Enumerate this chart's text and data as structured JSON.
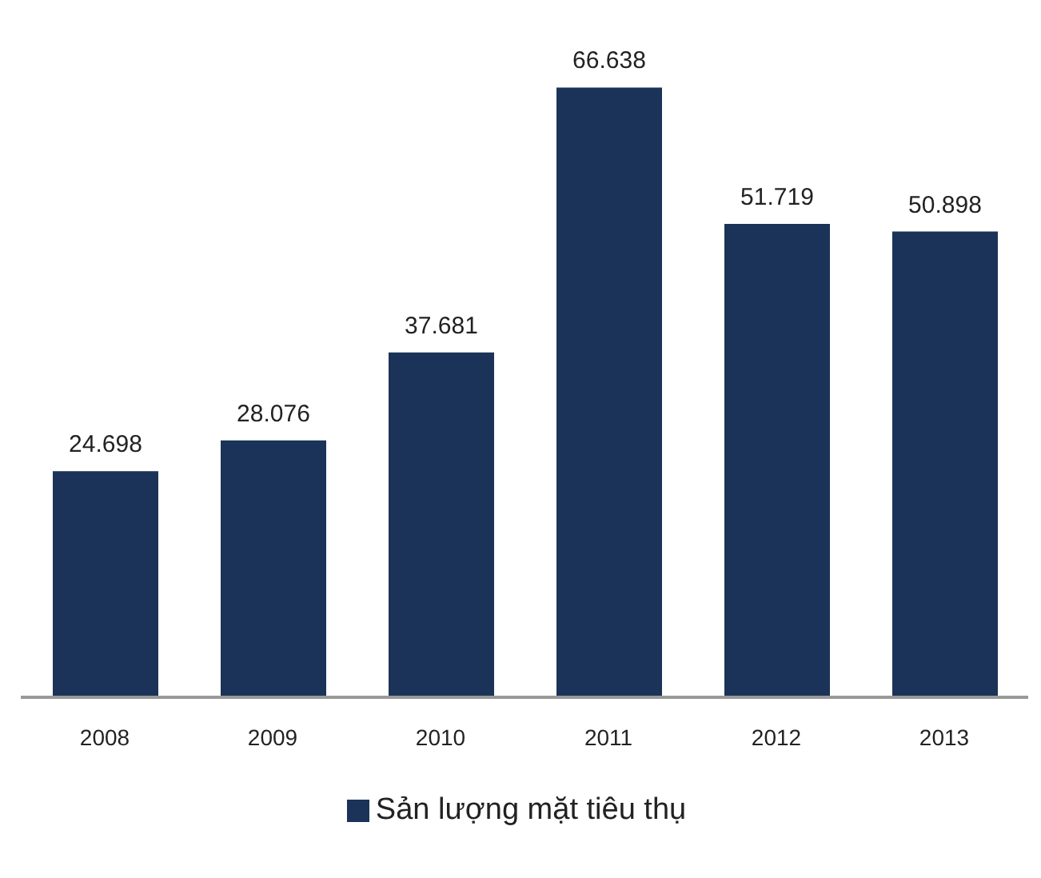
{
  "chart_data": {
    "type": "bar",
    "categories": [
      "2008",
      "2009",
      "2010",
      "2011",
      "2012",
      "2013"
    ],
    "series": [
      {
        "name": "Sản lượng mặt tiêu thụ",
        "color": "#1b3358",
        "values": [
          24.698,
          28.076,
          37.681,
          66.638,
          51.719,
          50.898
        ]
      }
    ],
    "data_labels": true,
    "legend": "bottom",
    "grid": false
  }
}
